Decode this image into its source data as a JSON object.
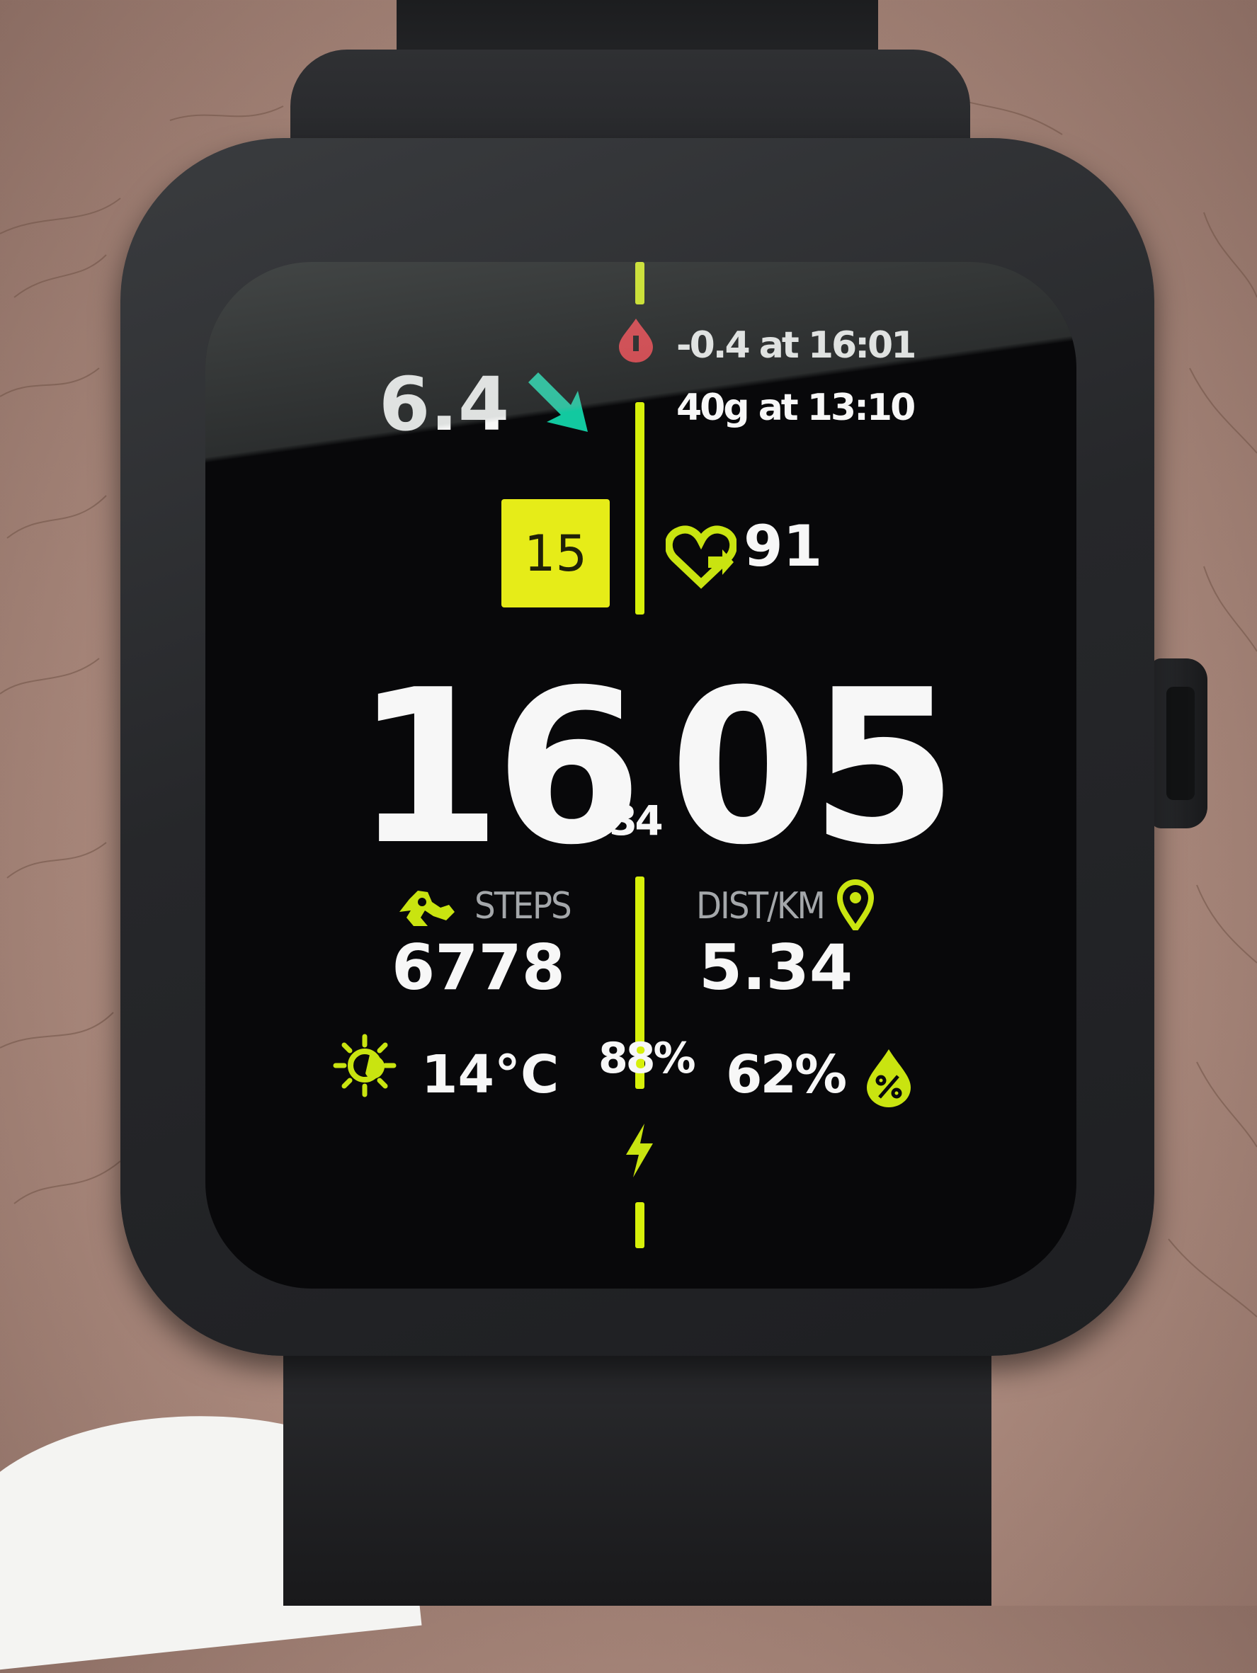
{
  "glucose": {
    "value": "6.4",
    "trend": "down-right-arrow-icon"
  },
  "log": {
    "line1": "-0.4 at 16:01",
    "line2": "40g at 13:10"
  },
  "date_badge": "15",
  "heart_rate": "91",
  "time": {
    "hours": "16",
    "minutes": "05",
    "seconds": "34"
  },
  "steps": {
    "label": "STEPS",
    "value": "6778"
  },
  "distance": {
    "label": "DIST/KM",
    "value": "5.34"
  },
  "weather": {
    "temperature": "14°C"
  },
  "battery": {
    "percent": "88%"
  },
  "humidity": {
    "percent": "62%"
  },
  "colors": {
    "accent": "#d7f00a",
    "badge": "#e6ec18",
    "arrow": "#12c9a0",
    "alert": "#e0303a",
    "text": "#f7f7f7",
    "screen": "#08080a"
  },
  "icons": [
    "drop-icon",
    "down-right-arrow-icon",
    "heart-icon",
    "steps-icon",
    "pin-icon",
    "sun-icon",
    "bolt-icon",
    "water-drop-icon"
  ]
}
